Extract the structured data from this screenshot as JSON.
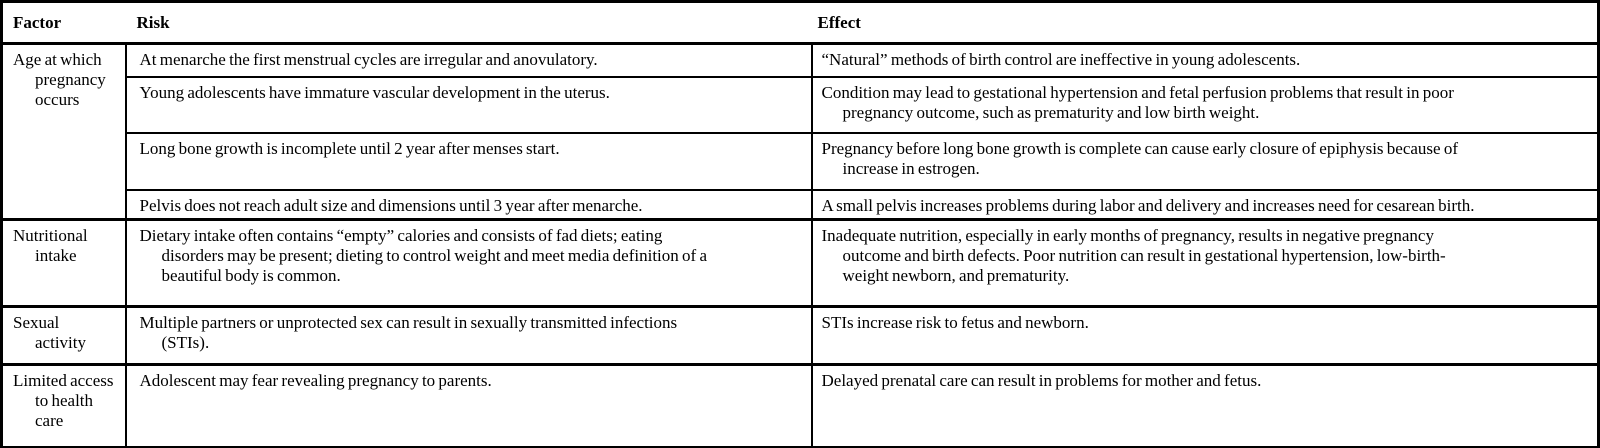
{
  "table": {
    "columns": {
      "factor": "Factor",
      "risk": "Risk",
      "effect": "Effect"
    },
    "groups": [
      {
        "factor": "Age at which\npregnancy\noccurs",
        "rows": [
          {
            "risk": "At menarche the first menstrual cycles are irregular and anovulatory.",
            "effect": "“Natural” methods of birth control are ineffective in young adolescents."
          },
          {
            "risk": "Young adolescents have immature vascular development in the uterus.",
            "effect": "Condition may lead to gestational hypertension and fetal perfusion problems that result in poor\npregnancy outcome, such as prematurity and low birth weight."
          },
          {
            "risk": "Long bone growth is incomplete until 2 year after menses start.",
            "effect": "Pregnancy before long bone growth is complete can cause early closure of epiphysis because of\nincrease in estrogen."
          },
          {
            "risk": "Pelvis does not reach adult size and dimensions until 3 year after menarche.",
            "effect": "A small pelvis increases problems during labor and delivery and increases need for cesarean birth."
          }
        ]
      },
      {
        "factor": "Nutritional\nintake",
        "rows": [
          {
            "risk": "Dietary intake often contains “empty” calories and consists of fad diets; eating\ndisorders may be present; dieting to control weight and meet media definition of a\nbeautiful body is common.",
            "effect": "Inadequate nutrition, especially in early months of pregnancy, results in negative pregnancy\noutcome and birth defects. Poor nutrition can result in gestational hypertension, low-birth-\nweight newborn, and prematurity."
          }
        ]
      },
      {
        "factor": "Sexual\nactivity",
        "rows": [
          {
            "risk": "Multiple partners or unprotected sex can result in sexually transmitted infections\n(STIs).",
            "effect": "STIs increase risk to fetus and newborn."
          }
        ]
      },
      {
        "factor": "Limited access\nto health\ncare",
        "rows": [
          {
            "risk": "Adolescent may fear revealing pregnancy to parents.",
            "effect": "Delayed prenatal care can result in problems for mother and fetus."
          }
        ]
      }
    ]
  }
}
